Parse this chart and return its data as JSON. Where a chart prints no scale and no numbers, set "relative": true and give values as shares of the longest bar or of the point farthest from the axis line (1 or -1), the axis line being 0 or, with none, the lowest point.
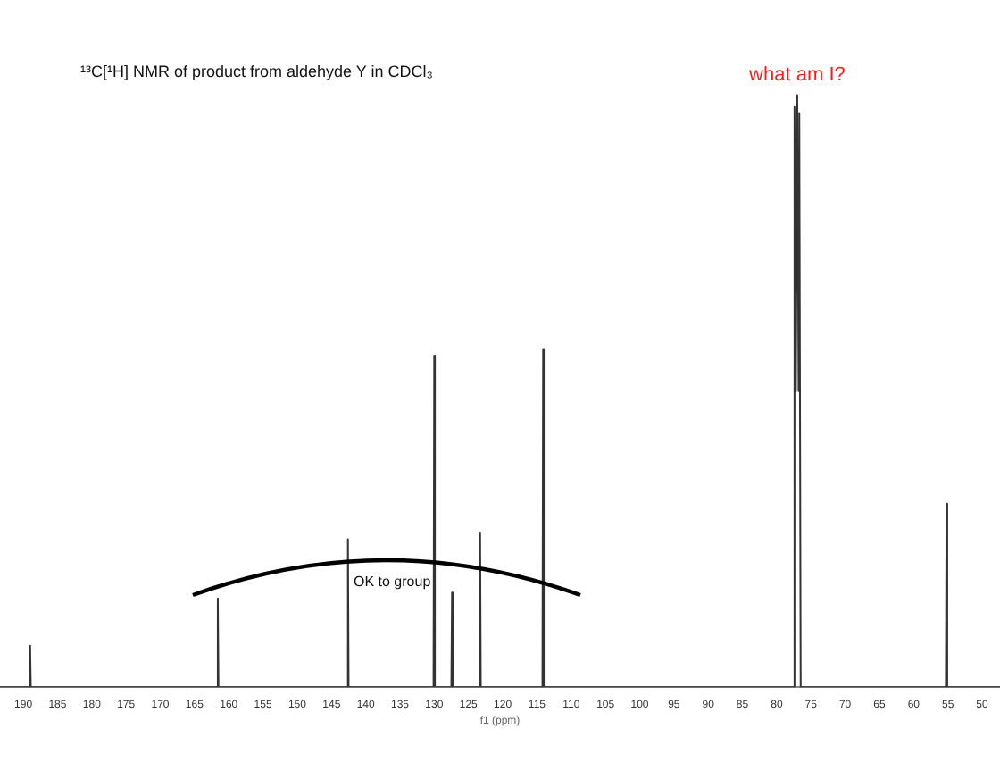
{
  "chart_data": {
    "type": "line",
    "title": "¹³C[¹H] NMR of product from aldehyde Y in CDCl₃",
    "xlabel": "f1 (ppm)",
    "relative": true,
    "xlim": [
      193.4,
      47.4
    ],
    "xticks": [
      190,
      185,
      180,
      175,
      170,
      165,
      160,
      155,
      150,
      145,
      140,
      135,
      130,
      125,
      120,
      115,
      110,
      105,
      100,
      95,
      90,
      85,
      80,
      75,
      70,
      65,
      60,
      55,
      50
    ],
    "series": [
      {
        "color": "#333333",
        "x": [
          193.4,
          189.1,
          189,
          188.9,
          161.7,
          161.6,
          161.5,
          142.7,
          142.6,
          142.5,
          130.1,
          130,
          129.9,
          127.5,
          127.4,
          127.3,
          123.4,
          123.3,
          123.2,
          114.2,
          114.1,
          114,
          77.6,
          77.4,
          77.2,
          77,
          76.8,
          76.7,
          76.5,
          55.3,
          55.2,
          55.1,
          47.4
        ],
        "values": [
          0,
          0,
          0.07,
          0,
          0,
          0.15,
          0,
          0,
          0.25,
          0,
          0,
          0.56,
          0,
          0,
          0.16,
          0,
          0,
          0.26,
          0,
          0,
          0.57,
          0,
          0,
          0.98,
          0.5,
          1,
          0.5,
          0.97,
          0,
          0,
          0.31,
          0,
          0
        ]
      }
    ],
    "annotations": [
      {
        "text": "what am I?",
        "x": 77,
        "y": 1
      },
      "OK to group"
    ],
    "grid": false,
    "legend": false,
    "marker": "none",
    "line_style": "solid"
  }
}
